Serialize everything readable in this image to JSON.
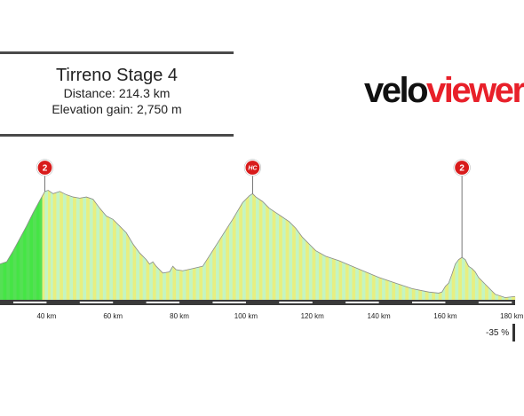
{
  "info": {
    "title": "Tirreno Stage 4",
    "distance": "Distance: 214.3 km",
    "elevation_gain": "Elevation gain: 2,750 m"
  },
  "logo": {
    "part1": "velo",
    "part2": "viewer"
  },
  "legend": {
    "min_label": "-35 %"
  },
  "chart_data": {
    "type": "area",
    "title": "Tirreno Stage 4",
    "xlabel": "",
    "ylabel": "",
    "xlim": [
      26,
      181
    ],
    "x_unit": "km",
    "x_ticks": [
      40,
      60,
      80,
      100,
      120,
      140,
      160,
      180
    ],
    "x_tick_labels": [
      "40 km",
      "60 km",
      "80 km",
      "100 km",
      "120 km",
      "140 km",
      "160 km",
      "180 km"
    ],
    "profile": [
      [
        26,
        0.32
      ],
      [
        28,
        0.34
      ],
      [
        30,
        0.44
      ],
      [
        32,
        0.55
      ],
      [
        34,
        0.66
      ],
      [
        36,
        0.78
      ],
      [
        38,
        0.89
      ],
      [
        39.5,
        0.97
      ],
      [
        40.5,
        0.98
      ],
      [
        42,
        0.95
      ],
      [
        44,
        0.97
      ],
      [
        46,
        0.94
      ],
      [
        48,
        0.92
      ],
      [
        50,
        0.91
      ],
      [
        52,
        0.92
      ],
      [
        54,
        0.9
      ],
      [
        56,
        0.82
      ],
      [
        58,
        0.75
      ],
      [
        60,
        0.72
      ],
      [
        62,
        0.66
      ],
      [
        64,
        0.6
      ],
      [
        66,
        0.5
      ],
      [
        68,
        0.42
      ],
      [
        70,
        0.36
      ],
      [
        71,
        0.32
      ],
      [
        72,
        0.34
      ],
      [
        73,
        0.3
      ],
      [
        75,
        0.24
      ],
      [
        77,
        0.25
      ],
      [
        78,
        0.3
      ],
      [
        79,
        0.27
      ],
      [
        81,
        0.26
      ],
      [
        84,
        0.28
      ],
      [
        87,
        0.3
      ],
      [
        90,
        0.44
      ],
      [
        93,
        0.58
      ],
      [
        96,
        0.72
      ],
      [
        99,
        0.87
      ],
      [
        101,
        0.93
      ],
      [
        102,
        0.95
      ],
      [
        103,
        0.92
      ],
      [
        105,
        0.88
      ],
      [
        107,
        0.82
      ],
      [
        109,
        0.78
      ],
      [
        111,
        0.74
      ],
      [
        113,
        0.7
      ],
      [
        115,
        0.64
      ],
      [
        117,
        0.56
      ],
      [
        119,
        0.5
      ],
      [
        121,
        0.44
      ],
      [
        124,
        0.39
      ],
      [
        128,
        0.35
      ],
      [
        132,
        0.3
      ],
      [
        136,
        0.25
      ],
      [
        140,
        0.2
      ],
      [
        145,
        0.15
      ],
      [
        150,
        0.1
      ],
      [
        155,
        0.07
      ],
      [
        158,
        0.06
      ],
      [
        159,
        0.07
      ],
      [
        160,
        0.12
      ],
      [
        161,
        0.15
      ],
      [
        162,
        0.23
      ],
      [
        163,
        0.32
      ],
      [
        164,
        0.36
      ],
      [
        165,
        0.38
      ],
      [
        166,
        0.36
      ],
      [
        167,
        0.3
      ],
      [
        168,
        0.28
      ],
      [
        169,
        0.25
      ],
      [
        170,
        0.2
      ],
      [
        172,
        0.14
      ],
      [
        175,
        0.05
      ],
      [
        178,
        0.02
      ],
      [
        181,
        0.03
      ]
    ],
    "categorized_climbs": [
      {
        "label": "2",
        "km": 39.5,
        "style": "circle"
      },
      {
        "label": "HC",
        "km": 102,
        "style": "circle"
      },
      {
        "label": "2",
        "km": 165,
        "style": "circle"
      }
    ],
    "segment_colors": [
      "#f2f27a",
      "#e8ef80",
      "#45e545",
      "#8af58a",
      "#6aeb6a",
      "#a8f0a8",
      "#9ff0d8",
      "#b6f3e8",
      "#9eeef0",
      "#c3f5c3",
      "#55e055",
      "#ffb84a",
      "#f5f550",
      "#c8f090",
      "#40d840",
      "#7ef07e"
    ],
    "colors": {
      "baseline": "#3a3a3a",
      "marker": "#d81b1b"
    }
  }
}
